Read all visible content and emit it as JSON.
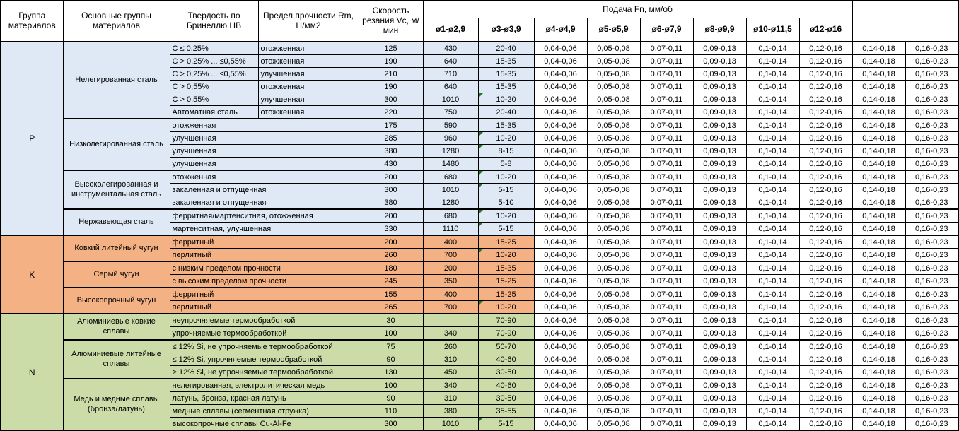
{
  "header": {
    "col_group": "Группа материалов",
    "col_main_groups": "Основные группы материалов",
    "col_hardness": "Твердость по Бринеллю HB",
    "col_strength": "Предел прочности Rm, Н/мм2",
    "col_speed": "Скорость резания Vc, м/мин",
    "feed_title": "Подача Fn, мм/об",
    "feed_columns": [
      "ø1-ø2,9",
      "ø3-ø3,9",
      "ø4-ø4,9",
      "ø5-ø5,9",
      "ø6-ø7,9",
      "ø8-ø9,9",
      "ø10-ø11,5",
      "ø12-ø16"
    ]
  },
  "feed_values": [
    "0,04-0,06",
    "0,05-0,08",
    "0,07-0,11",
    "0,09-0,13",
    "0,1-0,14",
    "0,12-0,16",
    "0,14-0,18",
    "0,16-0,23"
  ],
  "colors": {
    "group_p": "#DEE9F5",
    "group_k": "#F4B183",
    "group_n": "#CBDCA8",
    "error_marker_green": "#217A21",
    "border": "#000000"
  },
  "groups": [
    {
      "code": "P",
      "color_class": "bg-p",
      "subgroups": [
        {
          "name": "Нелегированная сталь",
          "rows": [
            {
              "sub": "C ≤ 0,25%",
              "state": "отожженная",
              "hb": "125",
              "rm": "430",
              "vc": "20-40",
              "marker": false
            },
            {
              "sub": "C > 0,25% ... ≤0,55%",
              "state": "отожженная",
              "hb": "190",
              "rm": "640",
              "vc": "15-35",
              "marker": false
            },
            {
              "sub": "C > 0,25% ... ≤0,55%",
              "state": "улучшенная",
              "hb": "210",
              "rm": "710",
              "vc": "15-35",
              "marker": false
            },
            {
              "sub": "C > 0,55%",
              "state": "отожженная",
              "hb": "190",
              "rm": "640",
              "vc": "15-35",
              "marker": false
            },
            {
              "sub": "C > 0,55%",
              "state": "улучшенная",
              "hb": "300",
              "rm": "1010",
              "vc": "10-20",
              "marker": true
            },
            {
              "sub": "Автоматная сталь",
              "state": "отожженная",
              "hb": "220",
              "rm": "750",
              "vc": "20-40",
              "marker": false
            }
          ]
        },
        {
          "name": "Низколегированная сталь",
          "rows": [
            {
              "detail": "отожженная",
              "hb": "175",
              "rm": "590",
              "vc": "15-35",
              "marker": false
            },
            {
              "detail": "улучшенная",
              "hb": "285",
              "rm": "960",
              "vc": "10-20",
              "marker": true
            },
            {
              "detail": "улучшенная",
              "hb": "380",
              "rm": "1280",
              "vc": "8-15",
              "marker": true
            },
            {
              "detail": "улучшенная",
              "hb": "430",
              "rm": "1480",
              "vc": "5-8",
              "marker": false
            }
          ]
        },
        {
          "name": "Высоколегированная и инструментальная сталь",
          "rows": [
            {
              "detail": "отожженная",
              "hb": "200",
              "rm": "680",
              "vc": "10-20",
              "marker": true
            },
            {
              "detail": "закаленная и отпущенная",
              "hb": "300",
              "rm": "1010",
              "vc": "5-15",
              "marker": true
            },
            {
              "detail": "закаленная и отпущенная",
              "hb": "380",
              "rm": "1280",
              "vc": "5-10",
              "marker": false
            }
          ]
        },
        {
          "name": "Нержавеющая сталь",
          "rows": [
            {
              "detail": "ферритная/мартенситная, отожженная",
              "hb": "200",
              "rm": "680",
              "vc": "10-20",
              "marker": true
            },
            {
              "detail": "мартенситная, улучшенная",
              "hb": "330",
              "rm": "1110",
              "vc": "5-15",
              "marker": true
            }
          ]
        }
      ]
    },
    {
      "code": "K",
      "color_class": "bg-k",
      "subgroups": [
        {
          "name": "Ковкий литейный чугун",
          "rows": [
            {
              "detail": "ферритный",
              "hb": "200",
              "rm": "400",
              "vc": "15-25",
              "marker": false
            },
            {
              "detail": "перлитный",
              "hb": "260",
              "rm": "700",
              "vc": "10-20",
              "marker": true
            }
          ]
        },
        {
          "name": "Серый чугун",
          "rows": [
            {
              "detail": "с низким пределом прочности",
              "hb": "180",
              "rm": "200",
              "vc": "15-35",
              "marker": false
            },
            {
              "detail": "с высоким пределом прочности",
              "hb": "245",
              "rm": "350",
              "vc": "15-25",
              "marker": false
            }
          ]
        },
        {
          "name": "Высокопрочный чугун",
          "rows": [
            {
              "detail": "ферритный",
              "hb": "155",
              "rm": "400",
              "vc": "15-25",
              "marker": false
            },
            {
              "detail": "перлитный",
              "hb": "265",
              "rm": "700",
              "vc": "10-20",
              "marker": true
            }
          ]
        }
      ]
    },
    {
      "code": "N",
      "color_class": "bg-n",
      "subgroups": [
        {
          "name": "Алюминиевые ковкие сплавы",
          "rows": [
            {
              "detail": "неупрочняемые термообработкой",
              "hb": "30",
              "rm": "",
              "vc": "70-90",
              "marker": false
            },
            {
              "detail": "упрочняемые термообработкой",
              "hb": "100",
              "rm": "340",
              "vc": "70-90",
              "marker": false
            }
          ]
        },
        {
          "name": "Алюминиевые литейные сплавы",
          "rows": [
            {
              "detail": "≤ 12% Si, не упрочняемые термообработкой",
              "hb": "75",
              "rm": "260",
              "vc": "50-70",
              "marker": false
            },
            {
              "detail": "≤ 12% Si, упрочняемые термообработкой",
              "hb": "90",
              "rm": "310",
              "vc": "40-60",
              "marker": false
            },
            {
              "detail": "> 12% Si, не упрочняемые термообработкой",
              "hb": "130",
              "rm": "450",
              "vc": "30-50",
              "marker": false
            }
          ]
        },
        {
          "name": "Медь и медные сплавы (бронза/латунь)",
          "rows": [
            {
              "detail": "нелегированная, электролитическая медь",
              "hb": "100",
              "rm": "340",
              "vc": "40-60",
              "marker": false
            },
            {
              "detail": "латунь, бронза, красная латунь",
              "hb": "90",
              "rm": "310",
              "vc": "30-50",
              "marker": false
            },
            {
              "detail": "медные сплавы (сегментная стружка)",
              "hb": "110",
              "rm": "380",
              "vc": "35-55",
              "marker": false
            },
            {
              "detail": "высокопрочные сплавы Cu-Al-Fe",
              "hb": "300",
              "rm": "1010",
              "vc": "5-15",
              "marker": true
            }
          ]
        }
      ]
    }
  ]
}
